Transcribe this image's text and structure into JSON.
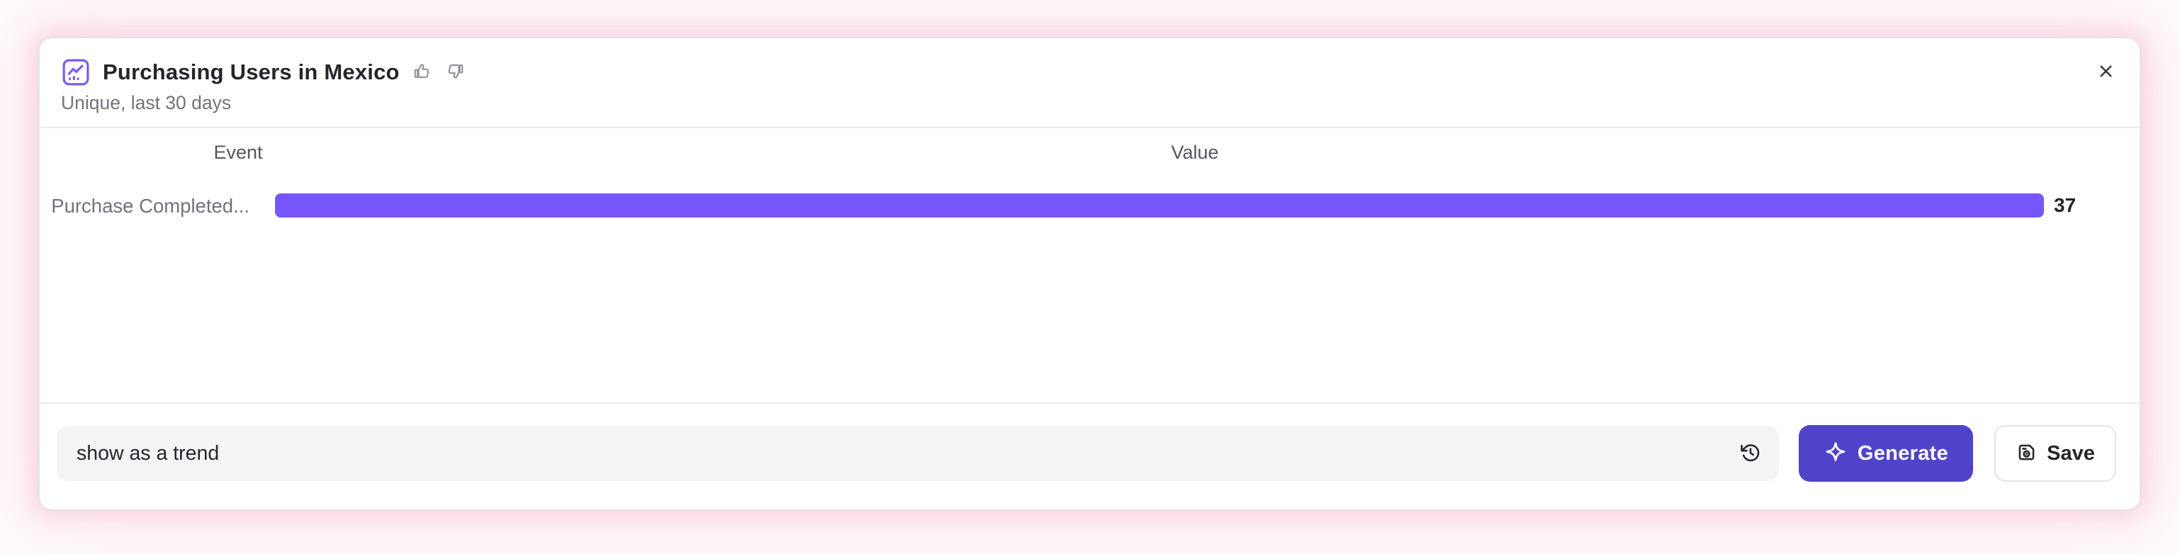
{
  "header": {
    "title": "Purchasing Users in Mexico",
    "subtitle": "Unique, last 30 days",
    "chart_icon": "line-chart-icon",
    "thumbs_up_icon": "thumbs-up-icon",
    "thumbs_down_icon": "thumbs-down-icon",
    "close_icon": "close-icon"
  },
  "chart_data": {
    "type": "bar",
    "orientation": "horizontal",
    "title": "Purchasing Users in Mexico",
    "subtitle": "Unique, last 30 days",
    "column_headers": [
      "Event",
      "Value"
    ],
    "categories": [
      "Purchase Completed..."
    ],
    "values": [
      37
    ],
    "xlim": [
      0,
      37
    ],
    "bar_color": "#7856FF",
    "grid": false,
    "legend": false,
    "data_labels": true
  },
  "footer": {
    "prompt_input": {
      "value": "show as a trend",
      "history_icon": "history-icon"
    },
    "generate_button": {
      "label": "Generate",
      "icon": "sparkle-icon"
    },
    "save_button": {
      "label": "Save",
      "icon": "save-icon"
    }
  },
  "colors": {
    "bar": "#7856FF",
    "generate_button": "#4F44C9",
    "card_border": "#E6E3F0",
    "glow": "#F39EBB",
    "input_background": "#F4F4F6"
  }
}
